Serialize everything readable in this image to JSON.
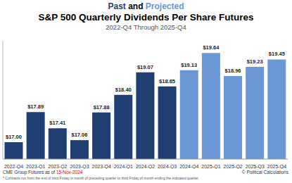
{
  "chart_data": {
    "type": "bar",
    "title": "S&P 500 Quarterly Dividends Per Share Futures",
    "supertitle": {
      "past": "Past",
      "joiner": "and",
      "projected": "Projected"
    },
    "past_color": "#1f3f73",
    "projected_color": "#6a97d6",
    "subtitle": "2022-Q4 Through 2025-Q4",
    "categories": [
      "2022-Q4",
      "2023-Q1",
      "2023-Q2",
      "2023-Q3",
      "2023-Q4",
      "2024-Q1",
      "2024-Q2",
      "2024-Q3",
      "2024-Q4",
      "2025-Q1",
      "2025-Q2",
      "2025-Q3",
      "2025-Q4"
    ],
    "values": [
      17.0,
      17.89,
      17.41,
      17.06,
      17.88,
      18.4,
      19.07,
      18.65,
      19.13,
      19.64,
      18.96,
      19.23,
      19.45
    ],
    "value_labels": [
      "$17.00",
      "$17.89",
      "$17.41",
      "$17.06",
      "$17.88",
      "$18.40",
      "$19.07",
      "$18.65",
      "$19.13",
      "$19.64",
      "$18.96",
      "$19.23",
      "$19.45"
    ],
    "colors": [
      "#1f3f73",
      "#1f3f73",
      "#1f3f73",
      "#1f3f73",
      "#1f3f73",
      "#1f3f73",
      "#1f3f73",
      "#1f3f73",
      "#6a97d6",
      "#6a97d6",
      "#6a97d6",
      "#6a97d6",
      "#6a97d6"
    ],
    "ylim": [
      16.5,
      20
    ],
    "tick_labels": "x",
    "data_labels": true,
    "grid": false,
    "source": "CME Group Futures as of",
    "source_date": "15-Nov-2024",
    "note": "* Contracts run from the end of third Friday in month of preceding quarter to third Friday of month ending the indicated quarter.",
    "credit": "© Political Calculations"
  }
}
